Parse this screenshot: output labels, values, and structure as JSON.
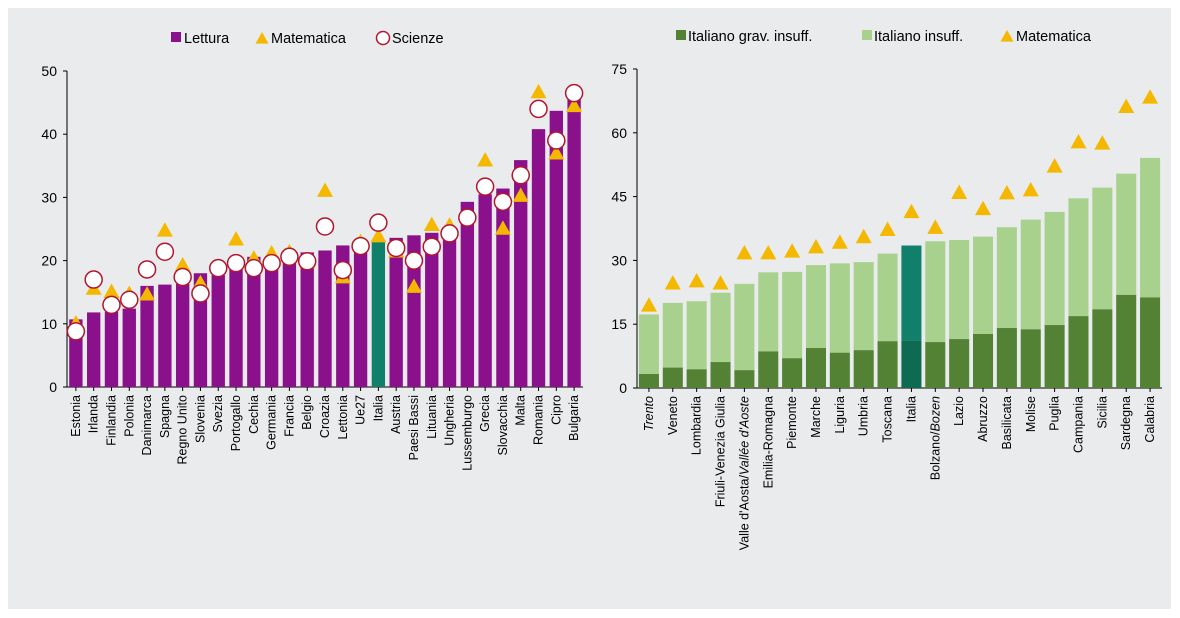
{
  "colors": {
    "lettura": "#8b108b",
    "italia_lettura": "#11806a",
    "matematica": "#f5b800",
    "scienze_stroke": "#b3162f",
    "grav_insuff": "#548235",
    "insuff": "#a9d18e",
    "italia_grav": "#0e6b52",
    "italia_insuff": "#11806a"
  },
  "chart_data": [
    {
      "type": "bar",
      "legend": [
        "Lettura",
        "Matematica",
        "Scienze"
      ],
      "legend_position": "top-center",
      "grid": false,
      "ylim": [
        0,
        50
      ],
      "yticks": [
        "0",
        "10",
        "20",
        "30",
        "40",
        "50"
      ],
      "highlight": "Italia",
      "categories": [
        "Estonia",
        "Irlanda",
        "Finlandia",
        "Polonia",
        "Danimarca",
        "Spagna",
        "Regno Unito",
        "Slovenia",
        "Svezia",
        "Portogallo",
        "Cechia",
        "Germania",
        "Francia",
        "Belgio",
        "Croazia",
        "Lettonia",
        "Ue27",
        "Italia",
        "Austria",
        "Paesi Bassi",
        "Lituania",
        "Ungheria",
        "Lussemburgo",
        "Grecia",
        "Slovacchia",
        "Malta",
        "Romania",
        "Cipro",
        "Bulgaria"
      ],
      "series": [
        {
          "name": "Lettura",
          "kind": "bar",
          "values": [
            10.7,
            11.8,
            11.9,
            12.4,
            16.0,
            16.2,
            16.3,
            18.0,
            17.7,
            20.0,
            20.6,
            20.7,
            20.9,
            21.3,
            21.6,
            22.4,
            22.4,
            23.3,
            23.6,
            24.0,
            24.4,
            25.0,
            29.3,
            30.5,
            31.4,
            35.9,
            40.8,
            43.7,
            47.1
          ]
        },
        {
          "name": "Matematica",
          "kind": "triangle",
          "values": [
            10.0,
            15.5,
            15.0,
            14.7,
            14.6,
            24.7,
            19.2,
            16.4,
            18.8,
            23.3,
            20.3,
            21.1,
            21.3,
            19.7,
            31.0,
            17.3,
            22.9,
            23.8,
            21.4,
            15.8,
            25.6,
            25.5,
            26.8,
            35.8,
            25.0,
            30.2,
            46.6,
            36.9,
            44.4
          ]
        },
        {
          "name": "Scienze",
          "kind": "circle",
          "values": [
            8.8,
            17.0,
            13.0,
            13.8,
            18.6,
            21.4,
            17.4,
            14.8,
            18.8,
            19.6,
            18.8,
            19.6,
            20.6,
            19.9,
            25.4,
            18.5,
            22.3,
            26.0,
            22.0,
            20.0,
            22.2,
            24.3,
            26.8,
            31.7,
            29.3,
            33.5,
            44.0,
            39.0,
            46.5
          ]
        }
      ]
    },
    {
      "type": "bar",
      "stacked": true,
      "legend": [
        "Italiano grav. insuff.",
        "Italiano insuff.",
        "Matematica"
      ],
      "legend_position": "top-center",
      "grid": false,
      "ylim": [
        0,
        75
      ],
      "yticks": [
        "0",
        "15",
        "30",
        "45",
        "60",
        "75"
      ],
      "highlight": "Italia",
      "categories": [
        "Trento",
        "Veneto",
        "Lombardia",
        "Friuli-Venezia Giulia",
        "Valle d'Aosta/Vallée d'Aoste",
        "Emilia-Romagna",
        "Piemonte",
        "Marche",
        "Liguria",
        "Umbria",
        "Toscana",
        "Italia",
        "Bolzano/Bozen",
        "Lazio",
        "Abruzzo",
        "Basilicata",
        "Molise",
        "Puglia",
        "Campania",
        "Sicilia",
        "Sardegna",
        "Calabria"
      ],
      "series": [
        {
          "name": "Italiano grav. insuff.",
          "kind": "bar",
          "values": [
            3.3,
            4.8,
            4.4,
            6.1,
            4.2,
            8.6,
            7.0,
            9.4,
            8.3,
            8.9,
            11.0,
            11.2,
            10.8,
            11.5,
            12.7,
            14.1,
            13.8,
            14.8,
            16.9,
            18.5,
            21.9,
            21.3
          ]
        },
        {
          "name": "Italiano insuff.",
          "kind": "bar",
          "total_values": [
            17.3,
            20.0,
            20.4,
            22.4,
            24.5,
            27.2,
            27.3,
            28.9,
            29.3,
            29.6,
            31.6,
            33.5,
            34.5,
            34.8,
            35.6,
            37.8,
            39.6,
            41.4,
            44.6,
            47.1,
            50.4,
            54.1
          ]
        },
        {
          "name": "Matematica",
          "kind": "triangle",
          "values": [
            19.3,
            24.5,
            25.0,
            24.5,
            31.6,
            31.6,
            32.0,
            33.0,
            34.1,
            35.4,
            37.1,
            41.3,
            37.6,
            45.8,
            42.0,
            45.7,
            46.4,
            52.0,
            57.7,
            57.4,
            66.0,
            68.2
          ]
        }
      ]
    }
  ]
}
